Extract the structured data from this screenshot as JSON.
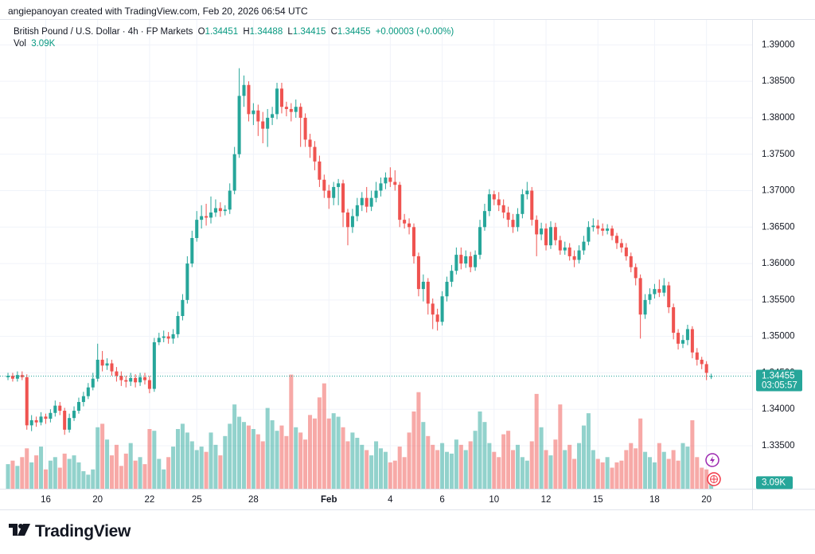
{
  "header": {
    "caption": "angiepanoyan created with TradingView.com, Feb 20, 2026 06:54 UTC"
  },
  "chart_data": {
    "type": "candlestick",
    "title": "British Pound / U.S. Dollar · 4h · FP Markets",
    "legend_keys": [
      "O",
      "H",
      "L",
      "C"
    ],
    "change": "+0.00003 (+0.00%)",
    "volume_title": "Vol",
    "last_volume_label": "3.09K",
    "countdown": "03:05:57",
    "up_color": "#26a69a",
    "down_color": "#ef5350",
    "grid": true,
    "xlim": [
      -1.69,
      157.67
    ],
    "xticks": [
      {
        "value": 8,
        "label": "16"
      },
      {
        "value": 19,
        "label": "20"
      },
      {
        "value": 30,
        "label": "22"
      },
      {
        "value": 40,
        "label": "25"
      },
      {
        "value": 52,
        "label": "28"
      },
      {
        "value": 68,
        "label": "Feb"
      },
      {
        "value": 81,
        "label": "4"
      },
      {
        "value": 92,
        "label": "6"
      },
      {
        "value": 103,
        "label": "10"
      },
      {
        "value": 114,
        "label": "12"
      },
      {
        "value": 125,
        "label": "15"
      },
      {
        "value": 137,
        "label": "18"
      },
      {
        "value": 148,
        "label": "20"
      }
    ],
    "ylim": [
      1.3291,
      1.3931
    ],
    "yticks": [
      {
        "value": 1.335,
        "label": "1.33500"
      },
      {
        "value": 1.34,
        "label": "1.34000"
      },
      {
        "value": 1.345,
        "label": "1.34500"
      },
      {
        "value": 1.35,
        "label": "1.35000"
      },
      {
        "value": 1.355,
        "label": "1.35500"
      },
      {
        "value": 1.36,
        "label": "1.36000"
      },
      {
        "value": 1.365,
        "label": "1.36500"
      },
      {
        "value": 1.37,
        "label": "1.37000"
      },
      {
        "value": 1.375,
        "label": "1.37500"
      },
      {
        "value": 1.38,
        "label": "1.38000"
      },
      {
        "value": 1.385,
        "label": "1.38500"
      },
      {
        "value": 1.39,
        "label": "1.39000"
      }
    ],
    "volume_lim": [
      0,
      34000
    ],
    "open": [
      1.3444,
      1.3446,
      1.3442,
      1.3447,
      1.3444,
      1.3378,
      1.3385,
      1.3382,
      1.339,
      1.3387,
      1.3395,
      1.3405,
      1.3398,
      1.3372,
      1.3388,
      1.3398,
      1.341,
      1.3418,
      1.343,
      1.3442,
      1.3468,
      1.346,
      1.3463,
      1.3452,
      1.3446,
      1.344,
      1.3438,
      1.3443,
      1.3437,
      1.3444,
      1.344,
      1.3428,
      1.3492,
      1.3498,
      1.35,
      1.3497,
      1.3503,
      1.3528,
      1.355,
      1.36,
      1.3635,
      1.366,
      1.3665,
      1.3663,
      1.367,
      1.3676,
      1.3672,
      1.3674,
      1.37,
      1.375,
      1.383,
      1.3845,
      1.3805,
      1.381,
      1.3795,
      1.3785,
      1.38,
      1.3805,
      1.384,
      1.3815,
      1.3812,
      1.3808,
      1.3815,
      1.38,
      1.377,
      1.376,
      1.374,
      1.3715,
      1.37,
      1.369,
      1.3705,
      1.371,
      1.367,
      1.365,
      1.3665,
      1.368,
      1.369,
      1.3678,
      1.369,
      1.37,
      1.371,
      1.3718,
      1.3712,
      1.3708,
      1.366,
      1.3655,
      1.365,
      1.361,
      1.3565,
      1.3575,
      1.3545,
      1.353,
      1.352,
      1.3555,
      1.3575,
      1.359,
      1.3612,
      1.36,
      1.361,
      1.3595,
      1.3612,
      1.365,
      1.3672,
      1.3695,
      1.3688,
      1.368,
      1.367,
      1.366,
      1.365,
      1.3668,
      1.3695,
      1.37,
      1.366,
      1.364,
      1.3648,
      1.3625,
      1.365,
      1.3632,
      1.3618,
      1.3622,
      1.361,
      1.3605,
      1.3618,
      1.363,
      1.365,
      1.3652,
      1.3648,
      1.3645,
      1.3648,
      1.3638,
      1.3628,
      1.3622,
      1.361,
      1.3595,
      1.358,
      1.353,
      1.355,
      1.3558,
      1.3565,
      1.356,
      1.357,
      1.354,
      1.3505,
      1.349,
      1.3495,
      1.351,
      1.3478,
      1.3468,
      1.3462,
      1.34451
    ],
    "high": [
      1.345,
      1.345,
      1.3452,
      1.3452,
      1.3448,
      1.3392,
      1.339,
      1.3396,
      1.3394,
      1.34,
      1.3412,
      1.341,
      1.3402,
      1.3394,
      1.3404,
      1.3416,
      1.3424,
      1.3436,
      1.345,
      1.349,
      1.348,
      1.347,
      1.3468,
      1.3458,
      1.3452,
      1.3446,
      1.345,
      1.3448,
      1.345,
      1.345,
      1.3446,
      1.3498,
      1.3505,
      1.3508,
      1.3506,
      1.351,
      1.3534,
      1.3558,
      1.361,
      1.3645,
      1.3672,
      1.368,
      1.3682,
      1.3692,
      1.3688,
      1.3684,
      1.368,
      1.371,
      1.376,
      1.3868,
      1.3858,
      1.385,
      1.382,
      1.3818,
      1.3808,
      1.3812,
      1.3815,
      1.3848,
      1.3848,
      1.3822,
      1.382,
      1.3825,
      1.382,
      1.3806,
      1.3778,
      1.3768,
      1.3748,
      1.3722,
      1.3708,
      1.3712,
      1.3716,
      1.3715,
      1.3675,
      1.3675,
      1.369,
      1.3698,
      1.3705,
      1.37,
      1.3712,
      1.3718,
      1.3725,
      1.3732,
      1.3728,
      1.3712,
      1.3668,
      1.3662,
      1.3655,
      1.3615,
      1.3585,
      1.358,
      1.3552,
      1.3538,
      1.3562,
      1.3582,
      1.3598,
      1.3622,
      1.3622,
      1.3618,
      1.3616,
      1.3618,
      1.366,
      1.3682,
      1.3702,
      1.37,
      1.3698,
      1.3688,
      1.3678,
      1.3668,
      1.3676,
      1.3702,
      1.3712,
      1.3705,
      1.3666,
      1.3656,
      1.3655,
      1.3658,
      1.3656,
      1.3638,
      1.363,
      1.3628,
      1.3618,
      1.3625,
      1.3638,
      1.3658,
      1.3662,
      1.366,
      1.3655,
      1.3654,
      1.3652,
      1.3642,
      1.3634,
      1.3628,
      1.3615,
      1.36,
      1.3585,
      1.3558,
      1.3566,
      1.3572,
      1.3578,
      1.358,
      1.3575,
      1.3545,
      1.351,
      1.3502,
      1.3516,
      1.3514,
      1.3484,
      1.3472,
      1.3466,
      1.34488
    ],
    "low": [
      1.344,
      1.3438,
      1.3438,
      1.344,
      1.3372,
      1.337,
      1.3376,
      1.3378,
      1.338,
      1.3382,
      1.339,
      1.3392,
      1.3365,
      1.3368,
      1.3384,
      1.3394,
      1.3404,
      1.3414,
      1.3426,
      1.3438,
      1.3452,
      1.3454,
      1.3446,
      1.3438,
      1.3432,
      1.343,
      1.3432,
      1.343,
      1.3432,
      1.3434,
      1.3422,
      1.3424,
      1.3488,
      1.3492,
      1.349,
      1.349,
      1.3498,
      1.3522,
      1.3545,
      1.3595,
      1.363,
      1.3648,
      1.3652,
      1.3655,
      1.3664,
      1.3664,
      1.3666,
      1.3668,
      1.3695,
      1.3745,
      1.3815,
      1.3795,
      1.379,
      1.3775,
      1.3765,
      1.376,
      1.379,
      1.3798,
      1.3806,
      1.3802,
      1.3795,
      1.38,
      1.376,
      1.376,
      1.3745,
      1.3728,
      1.3705,
      1.369,
      1.3675,
      1.368,
      1.368,
      1.365,
      1.3625,
      1.3642,
      1.3658,
      1.3672,
      1.367,
      1.3672,
      1.3684,
      1.3692,
      1.3702,
      1.3705,
      1.37,
      1.365,
      1.3648,
      1.364,
      1.36,
      1.3555,
      1.3548,
      1.353,
      1.351,
      1.3508,
      1.3515,
      1.3548,
      1.3568,
      1.3585,
      1.3592,
      1.3594,
      1.3588,
      1.359,
      1.3606,
      1.3645,
      1.3665,
      1.368,
      1.3672,
      1.3662,
      1.365,
      1.3642,
      1.3644,
      1.3662,
      1.3688,
      1.3652,
      1.361,
      1.3632,
      1.3618,
      1.362,
      1.3625,
      1.3612,
      1.3612,
      1.3604,
      1.3595,
      1.36,
      1.3612,
      1.3625,
      1.3644,
      1.364,
      1.3638,
      1.364,
      1.3632,
      1.362,
      1.3615,
      1.3604,
      1.3588,
      1.357,
      1.3497,
      1.3524,
      1.3544,
      1.3552,
      1.3554,
      1.3555,
      1.3532,
      1.3496,
      1.3482,
      1.3484,
      1.3488,
      1.347,
      1.346,
      1.3455,
      1.344,
      1.34415
    ],
    "close": [
      1.3446,
      1.3442,
      1.3447,
      1.3444,
      1.3378,
      1.3385,
      1.3382,
      1.339,
      1.3387,
      1.3395,
      1.3405,
      1.3398,
      1.3372,
      1.3388,
      1.3398,
      1.341,
      1.3418,
      1.343,
      1.3442,
      1.3468,
      1.346,
      1.3463,
      1.3452,
      1.3446,
      1.344,
      1.3438,
      1.3443,
      1.3437,
      1.3444,
      1.344,
      1.3428,
      1.3492,
      1.3498,
      1.35,
      1.3497,
      1.3503,
      1.3528,
      1.355,
      1.36,
      1.3635,
      1.366,
      1.3665,
      1.3663,
      1.367,
      1.3676,
      1.3672,
      1.3674,
      1.37,
      1.375,
      1.383,
      1.3845,
      1.3805,
      1.381,
      1.3795,
      1.3785,
      1.38,
      1.3805,
      1.384,
      1.3815,
      1.3812,
      1.3808,
      1.3815,
      1.38,
      1.377,
      1.376,
      1.374,
      1.3715,
      1.37,
      1.369,
      1.3705,
      1.371,
      1.367,
      1.365,
      1.3665,
      1.368,
      1.369,
      1.3678,
      1.369,
      1.37,
      1.371,
      1.3718,
      1.3712,
      1.3708,
      1.366,
      1.3655,
      1.365,
      1.361,
      1.3565,
      1.3575,
      1.3545,
      1.353,
      1.352,
      1.3555,
      1.3575,
      1.359,
      1.3612,
      1.36,
      1.361,
      1.3595,
      1.3612,
      1.365,
      1.3672,
      1.3695,
      1.3688,
      1.368,
      1.367,
      1.366,
      1.365,
      1.3668,
      1.3695,
      1.37,
      1.366,
      1.364,
      1.3648,
      1.3625,
      1.365,
      1.3632,
      1.3618,
      1.3622,
      1.361,
      1.3605,
      1.3618,
      1.363,
      1.365,
      1.3652,
      1.3648,
      1.3645,
      1.3648,
      1.3638,
      1.3628,
      1.3622,
      1.361,
      1.3595,
      1.358,
      1.353,
      1.355,
      1.3558,
      1.3565,
      1.356,
      1.357,
      1.354,
      1.3505,
      1.349,
      1.3495,
      1.351,
      1.3478,
      1.3468,
      1.3462,
      1.345,
      1.34455
    ],
    "volume": [
      7000,
      8000,
      6500,
      9000,
      11500,
      7500,
      9500,
      12000,
      5500,
      8000,
      9000,
      6000,
      10000,
      8500,
      9500,
      7500,
      5000,
      4000,
      5500,
      17500,
      18500,
      14000,
      9500,
      12500,
      6500,
      10000,
      13000,
      8000,
      9000,
      7000,
      17000,
      16500,
      8500,
      5500,
      9000,
      12000,
      17000,
      18500,
      16000,
      13500,
      11000,
      12000,
      10500,
      16000,
      12500,
      9500,
      15000,
      18500,
      24000,
      20500,
      19000,
      18000,
      17000,
      15500,
      13500,
      23000,
      19500,
      16500,
      18000,
      15000,
      32500,
      17500,
      16000,
      14000,
      21000,
      20000,
      26000,
      30000,
      20000,
      21500,
      20500,
      17500,
      13500,
      16000,
      14500,
      12500,
      11000,
      9500,
      13500,
      11500,
      10500,
      7500,
      8000,
      12000,
      9000,
      16000,
      22000,
      27500,
      19000,
      15000,
      12500,
      11000,
      13000,
      10500,
      10000,
      14000,
      12500,
      11000,
      13500,
      16500,
      22000,
      19000,
      13000,
      10500,
      9000,
      15500,
      16500,
      11000,
      12500,
      9000,
      8000,
      13500,
      27000,
      17500,
      11000,
      9500,
      14000,
      24000,
      11000,
      12500,
      8500,
      13000,
      18000,
      21500,
      11000,
      8500,
      7500,
      9000,
      6000,
      7500,
      8000,
      11000,
      13000,
      11500,
      20000,
      10500,
      9000,
      7500,
      13000,
      10500,
      8500,
      11000,
      8000,
      13000,
      12000,
      19500,
      9000,
      6000,
      5500,
      3090
    ]
  },
  "footer": {
    "brand": "TradingView"
  }
}
